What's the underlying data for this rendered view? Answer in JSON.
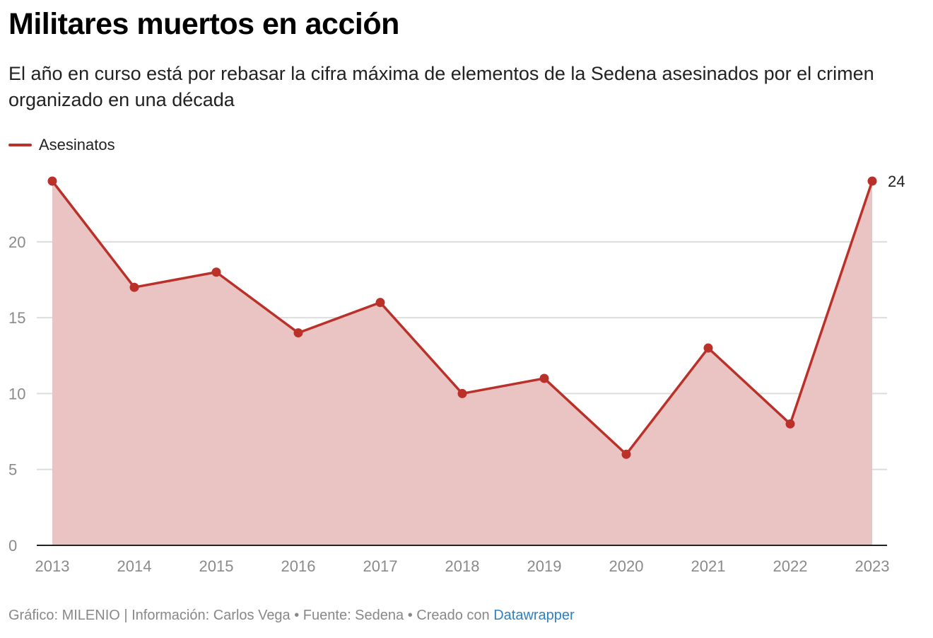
{
  "header": {
    "title": "Militares muertos en acción",
    "subtitle": "El año en curso está por rebasar la cifra máxima de elementos de la Sedena asesinados por el crimen organizado en una década"
  },
  "legend": {
    "label": "Asesinatos"
  },
  "footer": {
    "prefix": "Gráfico: MILENIO | Información: Carlos Vega • Fuente: Sedena • Creado con ",
    "link_text": "Datawrapper"
  },
  "colors": {
    "line": "#b93129",
    "area": "#eac4c2",
    "grid": "#dddddd",
    "axis": "#222222",
    "link": "#2f7fc1"
  },
  "chart_data": {
    "type": "area",
    "title": "Militares muertos en acción",
    "subtitle": "El año en curso está por rebasar la cifra máxima de elementos de la Sedena asesinados por el crimen organizado en una década",
    "x": [
      "2013",
      "2014",
      "2015",
      "2016",
      "2017",
      "2018",
      "2019",
      "2020",
      "2021",
      "2022",
      "2023"
    ],
    "series": [
      {
        "name": "Asesinatos",
        "values": [
          24,
          17,
          18,
          14,
          16,
          10,
          11,
          6,
          13,
          8,
          24
        ]
      }
    ],
    "y_ticks": [
      0,
      5,
      10,
      15,
      20
    ],
    "ylim": [
      0,
      24
    ],
    "grid": true,
    "legend_position": "top-left",
    "annotations": [
      {
        "x": "2023",
        "text": "24"
      }
    ]
  }
}
